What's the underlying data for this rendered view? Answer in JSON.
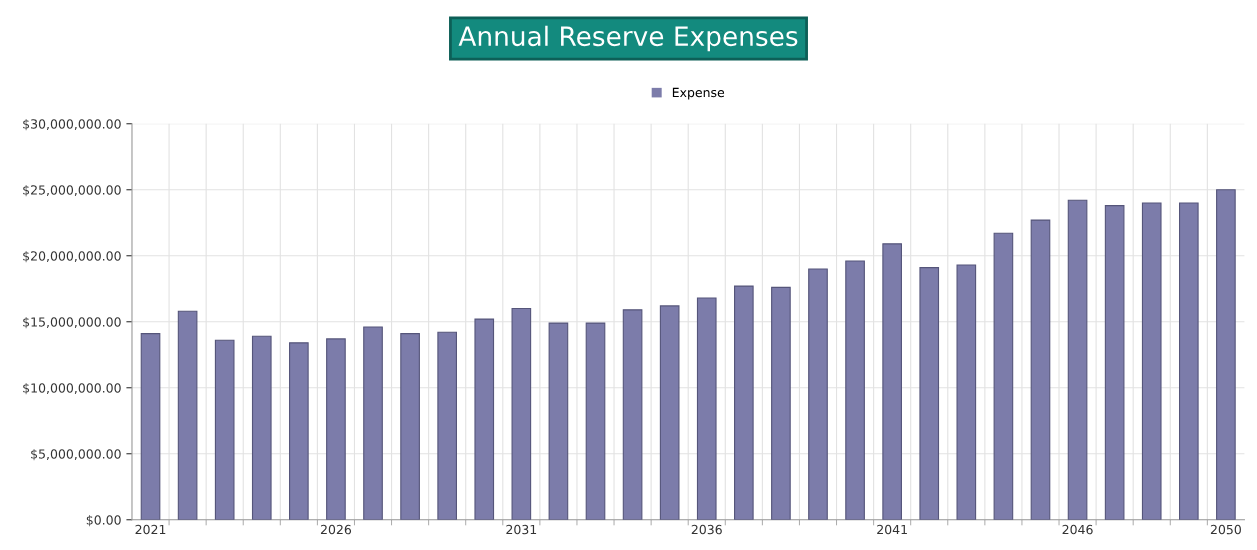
{
  "chart_data": {
    "type": "bar",
    "title": "Annual Reserve Expenses",
    "categories": [
      "2021",
      null,
      null,
      null,
      null,
      "2026",
      null,
      null,
      null,
      null,
      "2031",
      null,
      null,
      null,
      null,
      "2036",
      null,
      null,
      null,
      null,
      "2041",
      null,
      null,
      null,
      null,
      "2046",
      null,
      null,
      null,
      "2050"
    ],
    "series": [
      {
        "name": "Expense",
        "color": "#7c7caa",
        "values": [
          14100000.0,
          15800000.0,
          13600000.0,
          13900000.0,
          13400000.0,
          13700000.0,
          14600000.0,
          14100000.0,
          14200000.0,
          15200000.0,
          16000000.0,
          14900000.0,
          14900000.0,
          15900000.0,
          16200000.0,
          16800000.0,
          17700000.0,
          17600000.0,
          19000000.0,
          19600000.0,
          20900000.0,
          19100000.0,
          19300000.0,
          21700000.0,
          22700000.0,
          24200000.0,
          23800000.0,
          24000000.0,
          24000000.0,
          25000000.0
        ]
      }
    ],
    "ylim": [
      0,
      30000000
    ],
    "yticks": [
      {
        "value": 0,
        "label": "$0.00"
      },
      {
        "value": 5000000,
        "label": "$5,000,000.00"
      },
      {
        "value": 10000000,
        "label": "$10,000,000.00"
      },
      {
        "value": 15000000,
        "label": "$15,000,000.00"
      },
      {
        "value": 20000000,
        "label": "$20,000,000.00"
      },
      {
        "value": 25000000,
        "label": "$25,000,000.00"
      },
      {
        "value": 30000000,
        "label": "$30,000,000.00"
      }
    ],
    "grid": true,
    "legend": "top"
  }
}
